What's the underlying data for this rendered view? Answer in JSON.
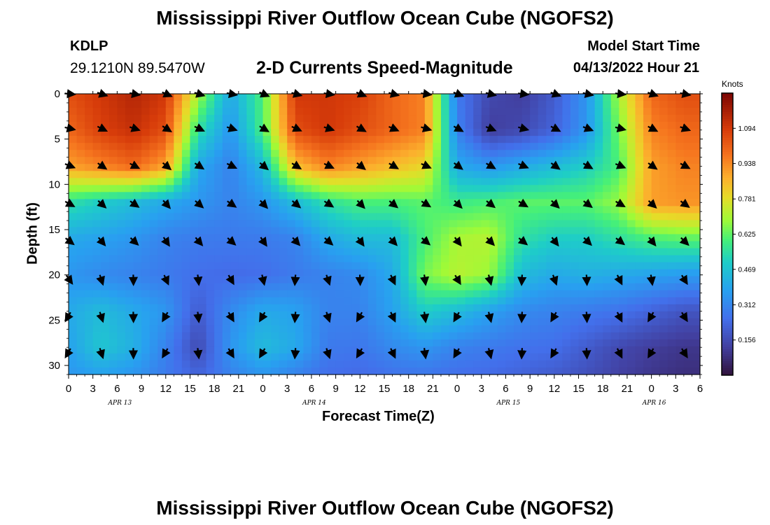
{
  "page": {
    "title": "Mississippi River Outflow Ocean Cube (NGOFS2)",
    "title_repeat": "Mississippi River Outflow Ocean Cube (NGOFS2)",
    "station_id": "KDLP",
    "coordinates": "29.1210N  89.5470W",
    "plot_title": "2-D Currents Speed-Magnitude",
    "start_time_label": "Model Start Time",
    "start_time_value": "04/13/2022 Hour 21"
  },
  "chart_data": {
    "type": "heatmap",
    "title": "2-D Currents Speed-Magnitude",
    "xlabel": "Forecast Time(Z)",
    "ylabel": "Depth (ft)",
    "y_inverted": true,
    "ylim": [
      0,
      31
    ],
    "yticks": [
      0,
      5,
      10,
      15,
      20,
      25,
      30
    ],
    "xlim": [
      0,
      78
    ],
    "x_tick_labels": [
      "0",
      "3",
      "6",
      "9",
      "12",
      "15",
      "18",
      "21",
      "0",
      "3",
      "6",
      "9",
      "12",
      "15",
      "18",
      "21",
      "0",
      "3",
      "6",
      "9",
      "12",
      "15",
      "18",
      "21",
      "0",
      "3",
      "6"
    ],
    "date_labels": [
      {
        "label": "APR 13",
        "hour": 6
      },
      {
        "label": "APR 14",
        "hour": 30
      },
      {
        "label": "APR 15",
        "hour": 54
      },
      {
        "label": "APR 16",
        "hour": 72
      }
    ],
    "colorbar": {
      "units": "Knots",
      "ticks": [
        0.156,
        0.312,
        0.469,
        0.625,
        0.781,
        0.938,
        1.094
      ],
      "range": [
        0.0,
        1.25
      ]
    },
    "vectors": {
      "hours": [
        0,
        4,
        8,
        12,
        16,
        20,
        24,
        28,
        32,
        36,
        40,
        44,
        48,
        52,
        56,
        60,
        64,
        68,
        72,
        76
      ],
      "depths": [
        0,
        3.8,
        7.9,
        12.1,
        16.2,
        20.4,
        24.5,
        28.5
      ],
      "direction_note": "arrows point mostly east at shallow depths and south-southeast near bottom"
    },
    "speed_field": {
      "description": "Current speed in knots by forecast hour (x) and depth in ft (y)",
      "hours": [
        0,
        4,
        8,
        12,
        16,
        20,
        24,
        28,
        32,
        36,
        40,
        44,
        48,
        52,
        56,
        60,
        64,
        68,
        72,
        76,
        78
      ],
      "depths": [
        0,
        4,
        8,
        12,
        16,
        20,
        24,
        28,
        31
      ],
      "values": [
        [
          1.05,
          1.1,
          1.15,
          1.1,
          0.7,
          0.4,
          0.6,
          1.1,
          1.1,
          1.08,
          1.0,
          0.95,
          0.28,
          0.15,
          0.12,
          0.2,
          0.35,
          0.7,
          1.0,
          1.05,
          1.05
        ],
        [
          1.0,
          1.08,
          1.12,
          1.05,
          0.55,
          0.35,
          0.6,
          1.05,
          1.1,
          1.05,
          1.0,
          0.95,
          0.3,
          0.12,
          0.15,
          0.22,
          0.35,
          0.65,
          0.95,
          1.0,
          1.0
        ],
        [
          0.9,
          0.95,
          1.0,
          0.9,
          0.4,
          0.3,
          0.45,
          0.85,
          0.95,
          0.9,
          0.85,
          0.8,
          0.4,
          0.35,
          0.4,
          0.45,
          0.5,
          0.6,
          0.9,
          0.95,
          0.95
        ],
        [
          0.55,
          0.5,
          0.45,
          0.4,
          0.35,
          0.3,
          0.35,
          0.45,
          0.55,
          0.6,
          0.6,
          0.62,
          0.58,
          0.6,
          0.62,
          0.62,
          0.62,
          0.68,
          0.9,
          0.92,
          0.92
        ],
        [
          0.4,
          0.38,
          0.35,
          0.3,
          0.28,
          0.28,
          0.28,
          0.3,
          0.4,
          0.45,
          0.45,
          0.6,
          0.7,
          0.72,
          0.55,
          0.5,
          0.5,
          0.55,
          0.6,
          0.62,
          0.62
        ],
        [
          0.35,
          0.32,
          0.3,
          0.28,
          0.25,
          0.24,
          0.25,
          0.28,
          0.3,
          0.32,
          0.4,
          0.65,
          0.72,
          0.68,
          0.45,
          0.4,
          0.42,
          0.4,
          0.38,
          0.36,
          0.36
        ],
        [
          0.4,
          0.45,
          0.4,
          0.35,
          0.2,
          0.32,
          0.4,
          0.38,
          0.3,
          0.3,
          0.38,
          0.5,
          0.45,
          0.38,
          0.32,
          0.3,
          0.28,
          0.26,
          0.22,
          0.18,
          0.18
        ],
        [
          0.38,
          0.48,
          0.42,
          0.3,
          0.15,
          0.35,
          0.45,
          0.4,
          0.28,
          0.27,
          0.32,
          0.35,
          0.3,
          0.28,
          0.26,
          0.25,
          0.2,
          0.15,
          0.12,
          0.1,
          0.1
        ],
        [
          0.35,
          0.38,
          0.35,
          0.28,
          0.22,
          0.3,
          0.35,
          0.3,
          0.25,
          0.24,
          0.26,
          0.27,
          0.25,
          0.24,
          0.22,
          0.2,
          0.17,
          0.13,
          0.1,
          0.08,
          0.08
        ]
      ]
    }
  }
}
